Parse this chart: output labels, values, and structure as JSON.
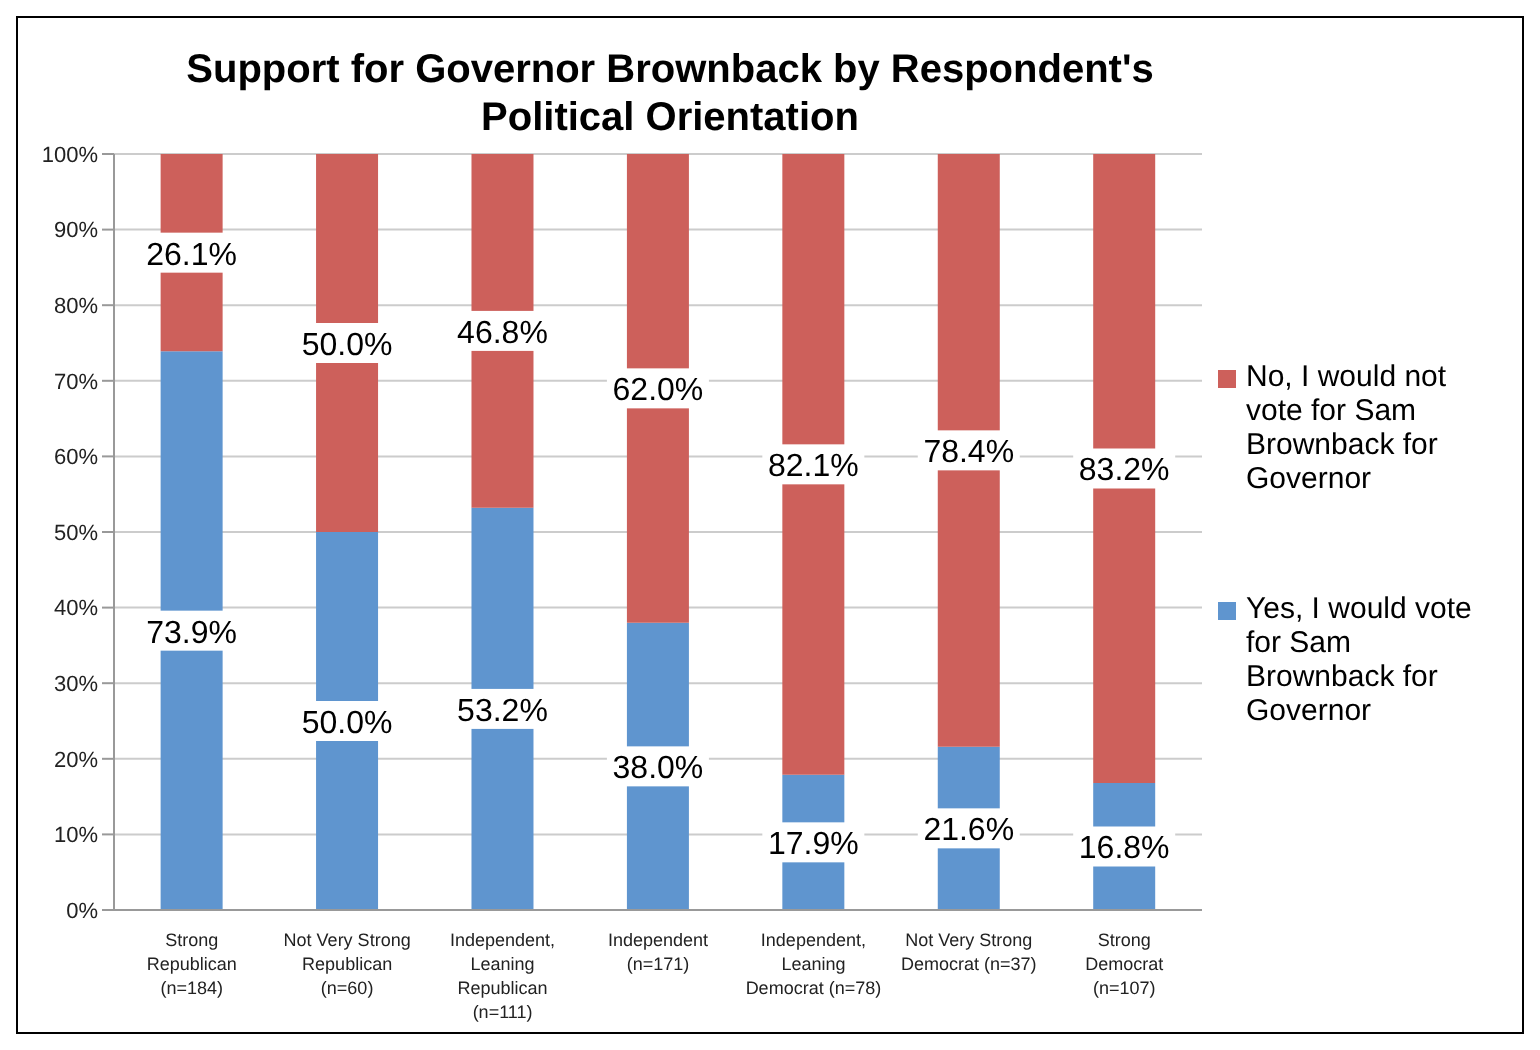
{
  "chart_data": {
    "type": "bar",
    "title": "Support for Governor Brownback by Respondent's Political Orientation",
    "stacked": true,
    "categories": [
      "Strong\nRepublican\n(n=184)",
      "Not Very Strong\nRepublican\n(n=60)",
      "Independent,\nLeaning\nRepublican\n(n=111)",
      "Independent\n(n=171)",
      "Independent,\nLeaning\nDemocrat (n=78)",
      "Not Very Strong\nDemocrat (n=37)",
      "Strong\nDemocrat\n(n=107)"
    ],
    "series": [
      {
        "name": "Yes, I would vote for Sam Brownback for Governor",
        "color": "#5f95cf",
        "values": [
          73.9,
          50.0,
          53.2,
          38.0,
          17.9,
          21.6,
          16.8
        ],
        "value_labels": [
          "73.9%",
          "50.0%",
          "53.2%",
          "38.0%",
          "17.9%",
          "21.6%",
          "16.8%"
        ]
      },
      {
        "name": "No, I would not vote for Sam Brownback for Governor",
        "color": "#cd605b",
        "values": [
          26.1,
          50.0,
          46.8,
          62.0,
          82.1,
          78.4,
          83.2
        ],
        "value_labels": [
          "26.1%",
          "50.0%",
          "46.8%",
          "62.0%",
          "82.1%",
          "78.4%",
          "83.2%"
        ]
      }
    ],
    "ylim": [
      0,
      100
    ],
    "yticks": [
      {
        "value": 0,
        "label": "0%"
      },
      {
        "value": 10,
        "label": "10%"
      },
      {
        "value": 20,
        "label": "20%"
      },
      {
        "value": 30,
        "label": "30%"
      },
      {
        "value": 40,
        "label": "40%"
      },
      {
        "value": 50,
        "label": "50%"
      },
      {
        "value": 60,
        "label": "60%"
      },
      {
        "value": 70,
        "label": "70%"
      },
      {
        "value": 80,
        "label": "80%"
      },
      {
        "value": 90,
        "label": "90%"
      },
      {
        "value": 100,
        "label": "100%"
      }
    ],
    "grid": "y",
    "legend": "right"
  }
}
